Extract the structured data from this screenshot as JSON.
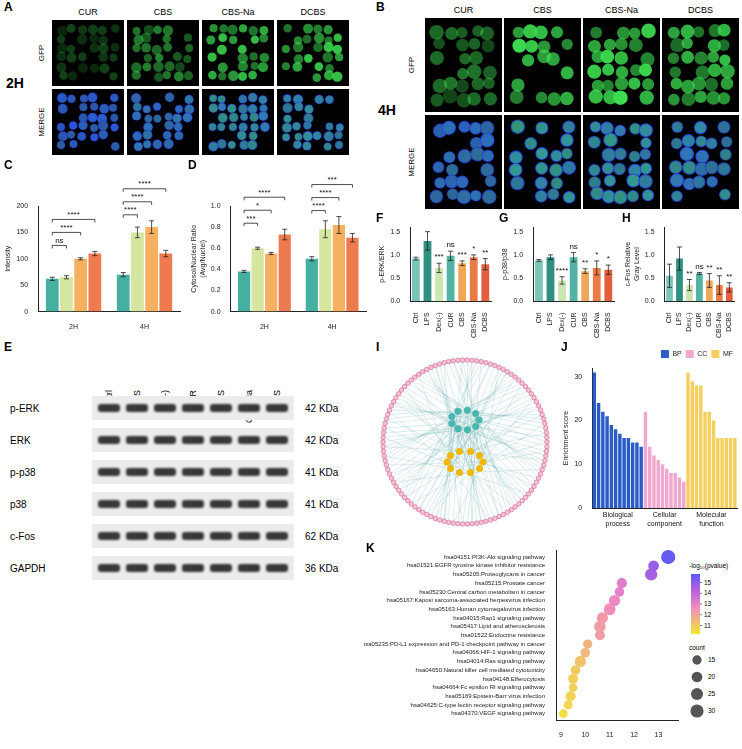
{
  "images": [
    {
      "panel": "A",
      "time": "2H",
      "columns": [
        "CUR",
        "CBS",
        "CBS-Na",
        "DCBS"
      ],
      "rows": [
        "GFP",
        "MERGE"
      ]
    },
    {
      "panel": "B",
      "time": "4H",
      "columns": [
        "CUR",
        "CBS",
        "CBS-Na",
        "DCBS"
      ],
      "rows": [
        "GFP",
        "MERGE"
      ]
    }
  ],
  "blot": {
    "panel": "E",
    "lanes": [
      "Ctrl",
      "LPS",
      "Dex(-)",
      "CUR",
      "CBS",
      "CBS-Na",
      "DCBS"
    ],
    "rows": [
      {
        "label": "p-ERK",
        "size": "42 KDa"
      },
      {
        "label": "ERK",
        "size": "42 KDa"
      },
      {
        "label": "p-p38",
        "size": "41 KDa"
      },
      {
        "label": "p38",
        "size": "41 KDa"
      },
      {
        "label": "c-Fos",
        "size": "62 KDa"
      },
      {
        "label": "GAPDH",
        "size": "36 KDa"
      }
    ]
  },
  "network": {
    "panel": "I"
  },
  "chart_data": [
    {
      "panel": "C",
      "type": "bar",
      "y_label": "Intensity",
      "categories": [
        "2H",
        "4H"
      ],
      "series": [
        {
          "color": "#45b0a0",
          "values": [
            62,
            70
          ],
          "errors": [
            3,
            4
          ]
        },
        {
          "color": "#d4e6a0",
          "values": [
            65,
            150
          ],
          "errors": [
            3,
            10
          ]
        },
        {
          "color": "#f5b060",
          "values": [
            100,
            160
          ],
          "errors": [
            2,
            12
          ]
        },
        {
          "color": "#ee7a50",
          "values": [
            110,
            110
          ],
          "errors": [
            4,
            6
          ]
        }
      ],
      "ylim": [
        0,
        200
      ],
      "yticks": [
        0,
        50,
        100,
        150,
        200
      ],
      "annotations": [
        {
          "category": "2H",
          "from": 0,
          "to": 1,
          "text": "ns"
        },
        {
          "category": "2H",
          "from": 0,
          "to": 2,
          "text": "****"
        },
        {
          "category": "2H",
          "from": 0,
          "to": 3,
          "text": "****"
        },
        {
          "category": "4H",
          "from": 0,
          "to": 1,
          "text": "****"
        },
        {
          "category": "4H",
          "from": 0,
          "to": 2,
          "text": "****"
        },
        {
          "category": "4H",
          "from": 0,
          "to": 3,
          "text": "****"
        }
      ]
    },
    {
      "panel": "D",
      "type": "bar",
      "y_label": "Cytosol/Nuclear Ratio (Avg/Nuclei)",
      "categories": [
        "2H",
        "4H"
      ],
      "series": [
        {
          "color": "#45b0a0",
          "values": [
            0.38,
            0.5
          ],
          "errors": [
            0.01,
            0.02
          ]
        },
        {
          "color": "#d4e6a0",
          "values": [
            0.6,
            0.78
          ],
          "errors": [
            0.01,
            0.08
          ]
        },
        {
          "color": "#f5b060",
          "values": [
            0.55,
            0.82
          ],
          "errors": [
            0.01,
            0.08
          ]
        },
        {
          "color": "#ee7a50",
          "values": [
            0.73,
            0.7
          ],
          "errors": [
            0.05,
            0.04
          ]
        }
      ],
      "ylim": [
        0,
        1
      ],
      "yticks": [
        {
          "value": 0,
          "label": "0.0"
        },
        0.2,
        0.4,
        0.6,
        0.8,
        {
          "value": 1,
          "label": "1.0"
        }
      ],
      "annotations": [
        {
          "category": "2H",
          "from": 0,
          "to": 1,
          "text": "***"
        },
        {
          "category": "2H",
          "from": 0,
          "to": 2,
          "text": "*"
        },
        {
          "category": "2H",
          "from": 0,
          "to": 3,
          "text": "****"
        },
        {
          "category": "4H",
          "from": 0,
          "to": 1,
          "text": "****"
        },
        {
          "category": "4H",
          "from": 0,
          "to": 2,
          "text": "****"
        },
        {
          "category": "4H",
          "from": 0,
          "to": 3,
          "text": "***"
        }
      ]
    },
    {
      "panel": "F",
      "type": "bar",
      "y_label": "p-ERK/ERK",
      "categories": [
        "Ctrl",
        "LPS",
        "Dex(-)",
        "CUR",
        "CBS",
        "CBS-Na",
        "DCBS"
      ],
      "values": [
        0.92,
        1.3,
        0.72,
        0.98,
        0.82,
        0.95,
        0.8
      ],
      "errors": [
        0.03,
        0.2,
        0.1,
        0.1,
        0.05,
        0.05,
        0.12
      ],
      "colors": [
        "#7cc4b8",
        "#2f8f80",
        "#cbe6b0",
        "#52b3a4",
        "#f0a75a",
        "#eb7b45",
        "#e35d3f"
      ],
      "ylim": [
        0,
        1.6
      ],
      "yticks": [
        {
          "value": 0,
          "label": "0.0"
        },
        0.5,
        {
          "value": 1,
          "label": "1.0"
        },
        1.5
      ],
      "annotations": [
        null,
        null,
        "***",
        "ns",
        "***",
        "*",
        "**"
      ]
    },
    {
      "panel": "G",
      "type": "bar",
      "y_label": "p-p38/p38",
      "categories": [
        "Ctrl",
        "LPS",
        "Dex(-)",
        "CUR",
        "CBS",
        "CBS-Na",
        "DCBS"
      ],
      "values": [
        0.88,
        0.95,
        0.45,
        0.95,
        0.65,
        0.72,
        0.68
      ],
      "errors": [
        0.02,
        0.05,
        0.08,
        0.1,
        0.05,
        0.15,
        0.1
      ],
      "colors": [
        "#7cc4b8",
        "#2f8f80",
        "#cbe6b0",
        "#52b3a4",
        "#f0a75a",
        "#eb7b45",
        "#e35d3f"
      ],
      "ylim": [
        0,
        1.6
      ],
      "yticks": [
        {
          "value": 0,
          "label": "0.0"
        },
        0.5,
        {
          "value": 1,
          "label": "1.0"
        },
        1.5
      ],
      "annotations": [
        null,
        null,
        "****",
        "ns",
        "**",
        "*",
        "*"
      ]
    },
    {
      "panel": "H",
      "type": "bar",
      "y_label": "c-Fos Relative Gray Level",
      "categories": [
        "Ctrl",
        "LPS",
        "Dex(-)",
        "CUR",
        "CBS",
        "CBS-Na",
        "DCBS"
      ],
      "values": [
        0.55,
        0.92,
        0.35,
        0.6,
        0.45,
        0.35,
        0.3
      ],
      "errors": [
        0.25,
        0.25,
        0.12,
        0.02,
        0.15,
        0.2,
        0.1
      ],
      "colors": [
        "#7cc4b8",
        "#2f8f80",
        "#cbe6b0",
        "#52b3a4",
        "#f0a75a",
        "#eb7b45",
        "#e35d3f"
      ],
      "ylim": [
        0,
        1.6
      ],
      "yticks": [
        {
          "value": 0,
          "label": "0.0"
        },
        0.5,
        {
          "value": 1,
          "label": "1.0"
        },
        1.5
      ],
      "annotations": [
        null,
        null,
        "**",
        "ns",
        "**",
        "**",
        "**"
      ]
    },
    {
      "panel": "J",
      "type": "bar",
      "y_label": "Enrichment score",
      "categories": [
        null,
        null,
        null,
        null,
        null,
        null,
        null,
        null,
        null,
        null,
        null,
        null,
        null,
        null,
        null,
        null,
        null,
        null,
        null,
        null,
        null,
        null,
        null,
        null,
        null,
        null,
        null,
        null,
        null,
        null,
        null,
        null,
        null,
        null
      ],
      "series": [
        {
          "name": "BP",
          "color": "#2a5cc8",
          "values": [
            31,
            24,
            22,
            21,
            19,
            18,
            17,
            16,
            16,
            15,
            15,
            14,
            null,
            null,
            null,
            null,
            null,
            null,
            null,
            null,
            null,
            null,
            null,
            null,
            null,
            null,
            null,
            null,
            null,
            null,
            null,
            null,
            null,
            null
          ]
        },
        {
          "name": "CC",
          "color": "#f0a8d0",
          "values": [
            null,
            null,
            null,
            null,
            null,
            null,
            null,
            null,
            null,
            null,
            null,
            null,
            22,
            14,
            12,
            11,
            10,
            9,
            8,
            8,
            7,
            6,
            null,
            null,
            null,
            null,
            null,
            null,
            null,
            null,
            null,
            null,
            null,
            null
          ]
        },
        {
          "name": "MF",
          "color": "#f5d060",
          "values": [
            null,
            null,
            null,
            null,
            null,
            null,
            null,
            null,
            null,
            null,
            null,
            null,
            null,
            null,
            null,
            null,
            null,
            null,
            null,
            null,
            null,
            null,
            31,
            29,
            28,
            28,
            22,
            22,
            20,
            16,
            16,
            16,
            16,
            16
          ]
        }
      ],
      "stacked": true,
      "legend": "top-right",
      "tick_labels": "y",
      "ylim": [
        0,
        32
      ],
      "yticks": [
        0,
        10,
        20,
        30
      ],
      "annotations": [
        "Biological process",
        "Cellular component",
        "Molecular function"
      ]
    },
    {
      "panel": "K",
      "type": "scatter",
      "marker": "circle",
      "categories": [
        "hsa04151:PI3K-Akt signaling pathway",
        "hsa01521:EGFR tyrosine kinase inhibitor resistance",
        "hsa05205:Proteoglycans in cancer",
        "hsa05215:Prostate cancer",
        "hsa05230:Central carbon metabolism in cancer",
        "hsa05167:Kaposi sarcoma-associated herpesvirus infection",
        "hsa05163:Human cytomegalovirus infection",
        "hsa04015:Rap1 signaling pathway",
        "hsa05417:Lipid and atherosclerosis",
        "hsa01522:Endocrine resistance",
        "hsa05235:PD-L1 expression and PD-1 checkpoint pathway in cancer",
        "hsa04066:HIF-1 signaling pathway",
        "hsa04014:Ras signaling pathway",
        "hsa04650:Natural killer cell mediated cytotoxicity",
        "hsa04148:Efferocytosis",
        "hsa04664:Fc epsilon RI signaling pathway",
        "hsa05169:Epstein-Barr virus infection",
        "hsa04625:C-type lectin receptor signaling pathway",
        "hsa04370:VEGF signaling pathway"
      ],
      "values": [
        13.4,
        12.8,
        12.7,
        11.5,
        11.4,
        11.2,
        11.0,
        10.7,
        10.6,
        10.6,
        10.1,
        10.0,
        9.8,
        9.6,
        9.5,
        9.5,
        9.4,
        9.3,
        9.1
      ],
      "count": [
        35,
        20,
        26,
        18,
        16,
        22,
        24,
        22,
        23,
        17,
        15,
        16,
        22,
        16,
        17,
        13,
        18,
        14,
        13
      ],
      "color_values": [
        15.6,
        14.8,
        14.6,
        13.2,
        13.1,
        12.8,
        12.6,
        12.3,
        12.2,
        12.2,
        11.6,
        11.5,
        11.2,
        11.0,
        10.9,
        10.9,
        10.8,
        10.7,
        10.5
      ],
      "xlim": [
        8.8,
        13.8
      ],
      "xticks": [
        9,
        10,
        11,
        12,
        13
      ],
      "color_label": "-log₁₀(pvalue)",
      "color_range": [
        10.2,
        15.8
      ],
      "color_ticks": [
        11,
        12,
        13,
        14,
        15
      ],
      "size_label": "count",
      "size_ticks": [
        15,
        20,
        25,
        30
      ]
    }
  ]
}
